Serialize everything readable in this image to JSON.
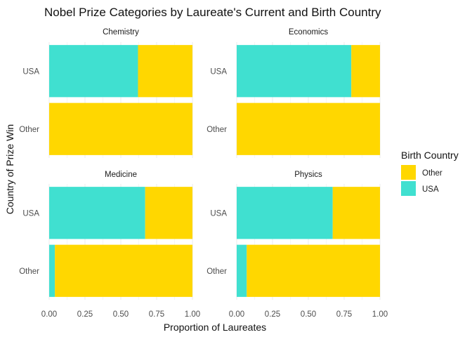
{
  "chart_data": {
    "type": "bar",
    "orientation": "horizontal",
    "stacked": true,
    "title": "Nobel Prize Categories by Laureate's Current and Birth Country",
    "xlabel": "Proportion of Laureates",
    "ylabel": "Country of Prize Win",
    "xlim": [
      0,
      1
    ],
    "x_ticks": [
      "0.00",
      "0.25",
      "0.50",
      "0.75",
      "1.00"
    ],
    "categories": [
      "USA",
      "Other"
    ],
    "grid": true,
    "legend": {
      "title": "Birth Country",
      "position": "right",
      "entries": [
        {
          "name": "Other",
          "color": "#FFD700"
        },
        {
          "name": "USA",
          "color": "#40E0D0"
        }
      ]
    },
    "facets": [
      {
        "name": "Chemistry",
        "series": [
          {
            "name": "USA",
            "values": [
              0.62,
              0.0
            ]
          },
          {
            "name": "Other",
            "values": [
              0.38,
              1.0
            ]
          }
        ]
      },
      {
        "name": "Economics",
        "series": [
          {
            "name": "USA",
            "values": [
              0.8,
              0.0
            ]
          },
          {
            "name": "Other",
            "values": [
              0.2,
              1.0
            ]
          }
        ]
      },
      {
        "name": "Medicine",
        "series": [
          {
            "name": "USA",
            "values": [
              0.67,
              0.04
            ]
          },
          {
            "name": "Other",
            "values": [
              0.33,
              0.96
            ]
          }
        ]
      },
      {
        "name": "Physics",
        "series": [
          {
            "name": "USA",
            "values": [
              0.67,
              0.07
            ]
          },
          {
            "name": "Other",
            "values": [
              0.33,
              0.93
            ]
          }
        ]
      }
    ]
  }
}
